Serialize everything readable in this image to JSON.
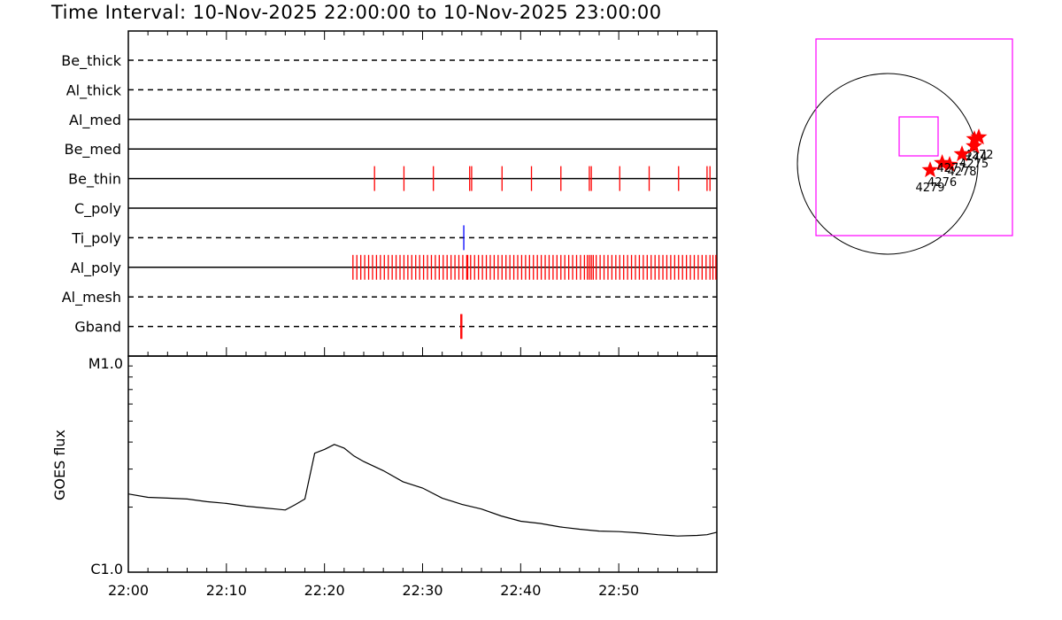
{
  "title": "Time Interval: 10-Nov-2025 22:00:00 to 10-Nov-2025 23:00:00",
  "chart_data": [
    {
      "type": "event-timeline",
      "x_range": [
        "22:00",
        "23:00"
      ],
      "x_ticks": [
        "22:00",
        "22:10",
        "22:20",
        "22:30",
        "22:40",
        "22:50"
      ],
      "rows": [
        {
          "label": "Be_thick",
          "style": "dashed",
          "events": [],
          "color": "#ff0000"
        },
        {
          "label": "Al_thick",
          "style": "dashed",
          "events": [],
          "color": "#ff0000"
        },
        {
          "label": "Al_med",
          "style": "solid",
          "events": [],
          "color": "#ff0000"
        },
        {
          "label": "Be_med",
          "style": "solid",
          "events": [],
          "color": "#ff0000"
        },
        {
          "label": "Be_thin",
          "style": "solid",
          "color": "#ff0000",
          "events": [
            25.1,
            28.1,
            31.1,
            34.8,
            35.0,
            38.1,
            41.1,
            44.1,
            47.0,
            47.2,
            50.1,
            53.1,
            56.1,
            59.0,
            59.3
          ]
        },
        {
          "label": "C_poly",
          "style": "solid",
          "events": [],
          "color": "#ff0000"
        },
        {
          "label": "Ti_poly",
          "style": "dashed",
          "color": "#0000ff",
          "events": [
            34.2
          ]
        },
        {
          "label": "Al_poly",
          "style": "solid",
          "color": "#ff0000",
          "events": [
            22.9,
            23.3,
            23.7,
            24.1,
            24.5,
            24.9,
            25.3,
            25.7,
            26.1,
            26.5,
            26.9,
            27.3,
            27.7,
            28.1,
            28.5,
            28.9,
            29.3,
            29.7,
            30.1,
            30.5,
            30.9,
            31.3,
            31.7,
            32.1,
            32.5,
            32.9,
            33.3,
            33.7,
            34.1,
            34.5,
            34.6,
            34.9,
            35.3,
            35.7,
            36.1,
            36.5,
            36.9,
            37.3,
            37.7,
            38.1,
            38.5,
            38.9,
            39.3,
            39.7,
            40.1,
            40.5,
            40.9,
            41.3,
            41.7,
            42.1,
            42.5,
            42.9,
            43.3,
            43.7,
            44.1,
            44.5,
            44.9,
            45.3,
            45.7,
            46.1,
            46.5,
            46.8,
            47.0,
            47.2,
            47.4,
            47.7,
            48.1,
            48.5,
            48.9,
            49.3,
            49.7,
            50.1,
            50.5,
            50.9,
            51.3,
            51.7,
            52.1,
            52.5,
            52.9,
            53.3,
            53.7,
            54.1,
            54.5,
            54.9,
            55.3,
            55.7,
            56.1,
            56.5,
            56.9,
            57.3,
            57.7,
            58.1,
            58.5,
            58.9,
            59.3,
            59.6,
            59.9
          ]
        },
        {
          "label": "Al_mesh",
          "style": "dashed",
          "events": [],
          "color": "#ff0000"
        },
        {
          "label": "Gband",
          "style": "dashed",
          "color": "#ff0000",
          "events": [
            33.9,
            34.0
          ]
        }
      ]
    },
    {
      "type": "line",
      "ylabel": "GOES flux",
      "ytick_labels": [
        "M1.0",
        "C1.0"
      ],
      "yscale": "log",
      "ylim": [
        "C1.0",
        "M1.0"
      ],
      "x_ticks": [
        "22:00",
        "22:10",
        "22:20",
        "22:30",
        "22:40",
        "22:50"
      ],
      "series": [
        {
          "x": [
            0,
            2,
            4,
            6,
            8,
            10,
            12,
            14,
            15,
            16,
            17,
            18,
            19,
            20,
            21,
            22,
            23,
            24,
            26,
            28,
            30,
            32,
            34,
            36,
            38,
            40,
            42,
            44,
            46,
            48,
            50,
            52,
            54,
            56,
            58,
            59,
            60
          ],
          "y": [
            2.3,
            2.22,
            2.2,
            2.18,
            2.12,
            2.08,
            2.02,
            1.98,
            1.96,
            1.94,
            2.05,
            2.18,
            3.55,
            3.7,
            3.9,
            3.75,
            3.45,
            3.25,
            2.95,
            2.62,
            2.45,
            2.2,
            2.06,
            1.96,
            1.82,
            1.72,
            1.68,
            1.62,
            1.58,
            1.55,
            1.54,
            1.52,
            1.49,
            1.47,
            1.48,
            1.49,
            1.53
          ]
        }
      ]
    },
    {
      "type": "scatter",
      "points": [
        {
          "label": "4272",
          "x": 515,
          "y": 150
        },
        {
          "label": "4274",
          "x": 490,
          "y": 140
        },
        {
          "label": "4275",
          "x": 488,
          "y": 100
        },
        {
          "label": "4276",
          "x": 308,
          "y": 5
        },
        {
          "label": "4277",
          "x": 350,
          "y": -5
        },
        {
          "label": "4278",
          "x": 420,
          "y": 55
        },
        {
          "label": "4279",
          "x": 240,
          "y": -35
        }
      ],
      "marker_color": "#ff0000",
      "box_color": "#ff00ff"
    }
  ]
}
